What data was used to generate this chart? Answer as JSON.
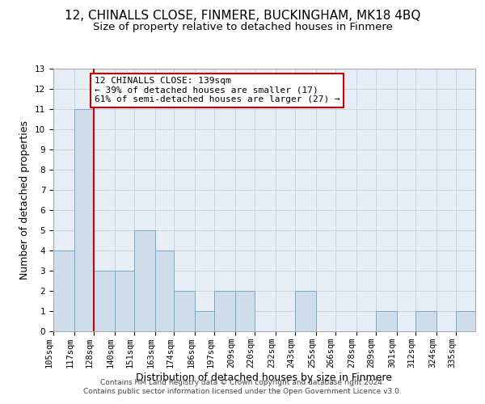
{
  "title1": "12, CHINALLS CLOSE, FINMERE, BUCKINGHAM, MK18 4BQ",
  "title2": "Size of property relative to detached houses in Finmere",
  "xlabel": "Distribution of detached houses by size in Finmere",
  "ylabel": "Number of detached properties",
  "bin_labels": [
    "105sqm",
    "117sqm",
    "128sqm",
    "140sqm",
    "151sqm",
    "163sqm",
    "174sqm",
    "186sqm",
    "197sqm",
    "209sqm",
    "220sqm",
    "232sqm",
    "243sqm",
    "255sqm",
    "266sqm",
    "278sqm",
    "289sqm",
    "301sqm",
    "312sqm",
    "324sqm",
    "335sqm"
  ],
  "bin_edges": [
    105,
    117,
    128,
    140,
    151,
    163,
    174,
    186,
    197,
    209,
    220,
    232,
    243,
    255,
    266,
    278,
    289,
    301,
    312,
    324,
    335,
    346
  ],
  "bar_heights": [
    4,
    11,
    3,
    3,
    5,
    4,
    2,
    1,
    2,
    2,
    0,
    0,
    2,
    0,
    0,
    0,
    1,
    0,
    1,
    0,
    1
  ],
  "bar_color": "#cfdcea",
  "bar_edge_color": "#7aaac8",
  "red_line_bin_index": 2,
  "annotation_text": "12 CHINALLS CLOSE: 139sqm\n← 39% of detached houses are smaller (17)\n61% of semi-detached houses are larger (27) →",
  "annotation_box_color": "#ffffff",
  "annotation_box_edge": "#cc0000",
  "red_line_color": "#cc0000",
  "ylim": [
    0,
    13
  ],
  "yticks": [
    0,
    1,
    2,
    3,
    4,
    5,
    6,
    7,
    8,
    9,
    10,
    11,
    12,
    13
  ],
  "grid_color": "#c8d4e4",
  "background_color": "#e8eef6",
  "footer1": "Contains HM Land Registry data © Crown copyright and database right 2024.",
  "footer2": "Contains public sector information licensed under the Open Government Licence v3.0.",
  "title1_fontsize": 11,
  "title2_fontsize": 9.5,
  "xlabel_fontsize": 9,
  "ylabel_fontsize": 9,
  "tick_fontsize": 7.5,
  "annotation_fontsize": 8,
  "footer_fontsize": 6.5
}
